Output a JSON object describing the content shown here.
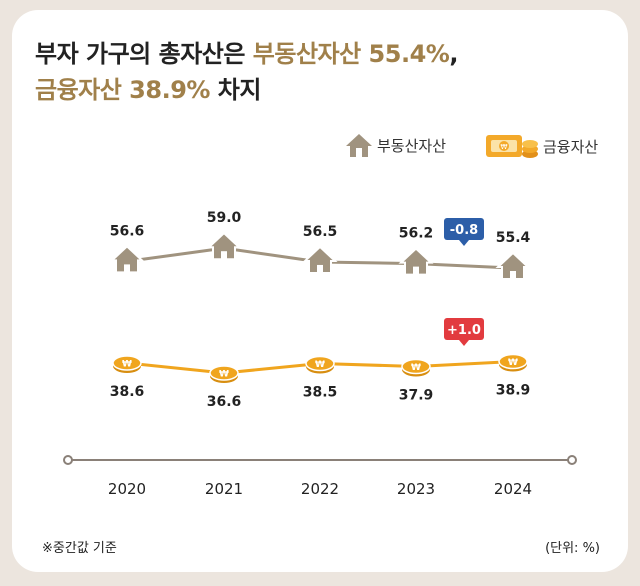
{
  "title": {
    "line1_prefix": "부자 가구의 총자산은 ",
    "line1_highlight": "부동산자산 55.4%",
    "line1_suffix": ",",
    "line2_highlight": "금융자산 38.9%",
    "line2_suffix": " 차지"
  },
  "legend": {
    "real_estate": "부동산자산",
    "financial": "금융자산"
  },
  "colors": {
    "real_estate": "#a0937f",
    "financial": "#f0a51e",
    "highlight": "#a0804a",
    "badge_down": "#2c5ea8",
    "badge_up": "#e23b3f"
  },
  "chart_data": {
    "type": "line",
    "categories": [
      "2020",
      "2021",
      "2022",
      "2023",
      "2024"
    ],
    "series": [
      {
        "name": "부동산자산",
        "values": [
          56.6,
          59.0,
          56.5,
          56.2,
          55.4
        ]
      },
      {
        "name": "금융자산",
        "values": [
          38.6,
          36.6,
          38.5,
          37.9,
          38.9
        ]
      }
    ],
    "value_labels": {
      "real_estate": [
        "56.6",
        "59.0",
        "56.5",
        "56.2",
        "55.4"
      ],
      "financial": [
        "38.6",
        "36.6",
        "38.5",
        "37.9",
        "38.9"
      ]
    },
    "annotations": [
      {
        "series": "부동산자산",
        "between": [
          "2023",
          "2024"
        ],
        "text": "-0.8"
      },
      {
        "series": "금융자산",
        "between": [
          "2023",
          "2024"
        ],
        "text": "+1.0"
      }
    ]
  },
  "footnote": "※중간값 기준",
  "unit": "(단위: %)"
}
